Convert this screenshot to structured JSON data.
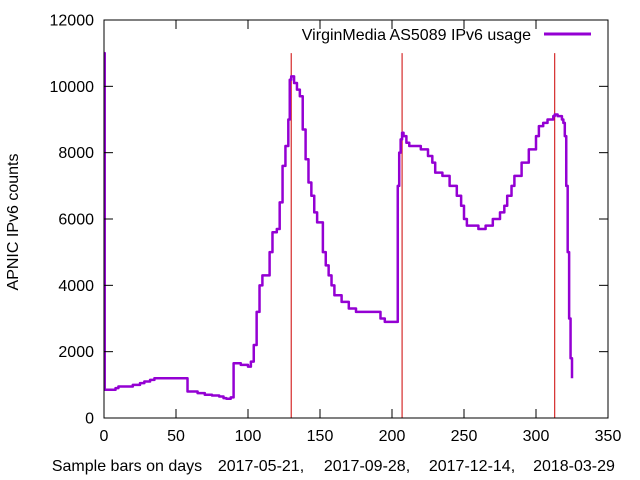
{
  "chart_data": {
    "type": "line",
    "title": "",
    "ylabel": "APNIC IPv6 counts",
    "xlabel_items": [
      "Sample bars on days",
      "2017-05-21,",
      "2017-09-28,",
      "2017-12-14,",
      "2018-03-29"
    ],
    "xlim": [
      0,
      350
    ],
    "ylim": [
      0,
      12000
    ],
    "xticks": [
      0,
      50,
      100,
      150,
      200,
      250,
      300,
      350
    ],
    "yticks": [
      0,
      2000,
      4000,
      6000,
      8000,
      10000,
      12000
    ],
    "grid": false,
    "legend_position": "top-right",
    "series": [
      {
        "name": "VirginMedia AS5089 IPv6 usage",
        "color": "#9400d3",
        "x": [
          0,
          0.5,
          1,
          8,
          10,
          15,
          20,
          25,
          28,
          32,
          35,
          40,
          45,
          50,
          55,
          57,
          58,
          60,
          65,
          70,
          75,
          80,
          83,
          85,
          88,
          90,
          92,
          95,
          98,
          100,
          102,
          104,
          106,
          108,
          110,
          112,
          115,
          117,
          120,
          122,
          124,
          126,
          128,
          129,
          130,
          132,
          134,
          136,
          138,
          140,
          142,
          144,
          146,
          148,
          150,
          152,
          154,
          156,
          158,
          160,
          165,
          170,
          175,
          180,
          185,
          190,
          192,
          195,
          200,
          203,
          204,
          205,
          206,
          207,
          208,
          210,
          212,
          215,
          220,
          225,
          228,
          230,
          235,
          240,
          245,
          248,
          250,
          252,
          255,
          260,
          265,
          270,
          275,
          278,
          280,
          283,
          285,
          290,
          295,
          300,
          302,
          305,
          308,
          312,
          313,
          315,
          318,
          319,
          320,
          321,
          322,
          323,
          324,
          325
        ],
        "y": [
          11000,
          850,
          850,
          900,
          950,
          950,
          1000,
          1050,
          1100,
          1150,
          1200,
          1200,
          1200,
          1200,
          1200,
          1200,
          800,
          800,
          750,
          700,
          680,
          650,
          600,
          580,
          620,
          1650,
          1650,
          1600,
          1600,
          1550,
          1700,
          2200,
          3200,
          4000,
          4300,
          4300,
          5000,
          5600,
          5700,
          6500,
          7600,
          8200,
          9000,
          10200,
          10300,
          10100,
          9900,
          9700,
          8700,
          7800,
          7100,
          6700,
          6200,
          5900,
          5900,
          5000,
          4600,
          4300,
          4000,
          3700,
          3500,
          3300,
          3200,
          3200,
          3200,
          3200,
          3000,
          2900,
          2900,
          2900,
          7000,
          8000,
          8400,
          8600,
          8500,
          8300,
          8200,
          8200,
          8100,
          7900,
          7700,
          7400,
          7300,
          7000,
          6700,
          6400,
          6000,
          5800,
          5800,
          5700,
          5800,
          6000,
          6200,
          6400,
          6700,
          7000,
          7300,
          7700,
          8100,
          8500,
          8800,
          8900,
          9000,
          9100,
          9150,
          9100,
          9000,
          8900,
          8500,
          7000,
          5000,
          3000,
          1800,
          1200
        ]
      }
    ],
    "vlines": {
      "color": "#cc0000",
      "x": [
        0,
        130,
        207,
        313
      ]
    }
  }
}
